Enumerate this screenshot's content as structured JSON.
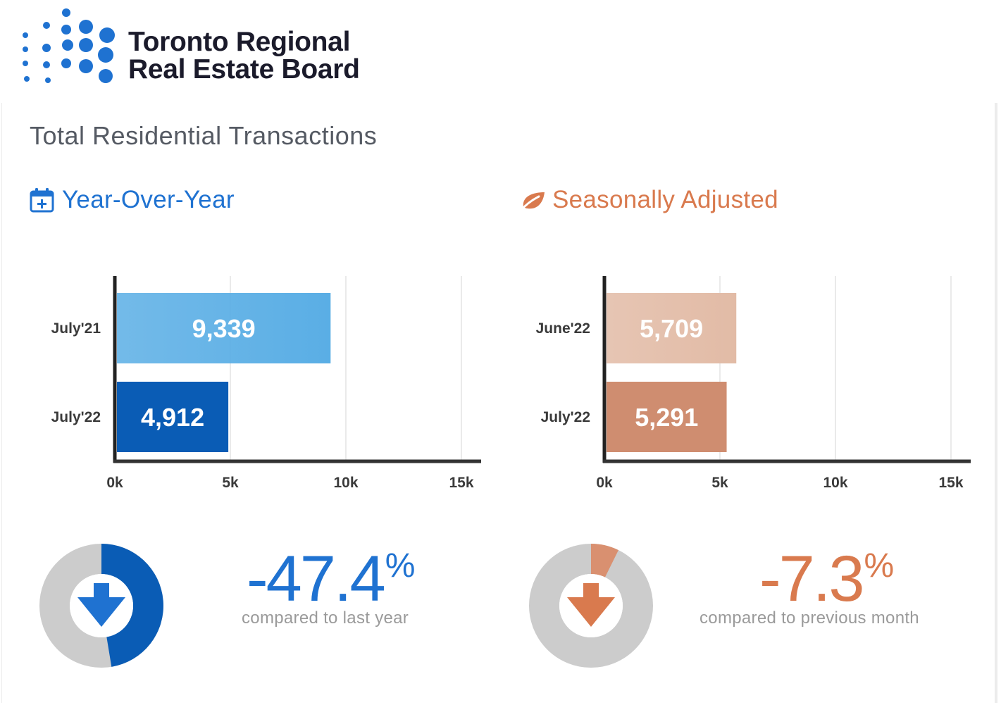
{
  "brand": {
    "line1": "Toronto Regional",
    "line2": "Real Estate Board",
    "accent_color": "#1f72d1"
  },
  "card_title": "Total Residential Transactions",
  "sections": [
    {
      "title": "Year-Over-Year",
      "icon": "calendar-plus-icon",
      "color": "#1f72d1"
    },
    {
      "title": "Seasonally Adjusted",
      "icon": "leaf-icon",
      "color": "#d97a4e"
    }
  ],
  "chart_data": [
    {
      "type": "bar",
      "orientation": "horizontal",
      "categories": [
        "July'21",
        "July'22"
      ],
      "values": [
        9339,
        4912
      ],
      "value_labels": [
        "9,339",
        "4,912"
      ],
      "bar_colors": [
        "#5aaee5",
        "#0a5cb5"
      ],
      "xlim": [
        0,
        15000
      ],
      "x_ticks": [
        0,
        5000,
        10000,
        15000
      ],
      "x_tick_labels": [
        "0k",
        "5k",
        "10k",
        "15k"
      ],
      "grid": true
    },
    {
      "type": "bar",
      "orientation": "horizontal",
      "categories": [
        "June'22",
        "July'22"
      ],
      "values": [
        5709,
        5291
      ],
      "value_labels": [
        "5,709",
        "5,291"
      ],
      "bar_colors": [
        "#e2bba6",
        "#cf8d70"
      ],
      "xlim": [
        0,
        15000
      ],
      "x_ticks": [
        0,
        5000,
        10000,
        15000
      ],
      "x_tick_labels": [
        "0k",
        "5k",
        "10k",
        "15k"
      ],
      "grid": true
    }
  ],
  "changes": [
    {
      "value": "-47.4",
      "unit": "%",
      "caption": "compared to last year",
      "donut_fraction": 0.474,
      "color": "#1f72d1",
      "ring_color": "#0a5cb5",
      "icon": "arrow-down-icon"
    },
    {
      "value": "-7.3",
      "unit": "%",
      "caption": "compared to previous month",
      "donut_fraction": 0.073,
      "color": "#d97a4e",
      "ring_color": "#d99070",
      "icon": "arrow-down-icon"
    }
  ]
}
